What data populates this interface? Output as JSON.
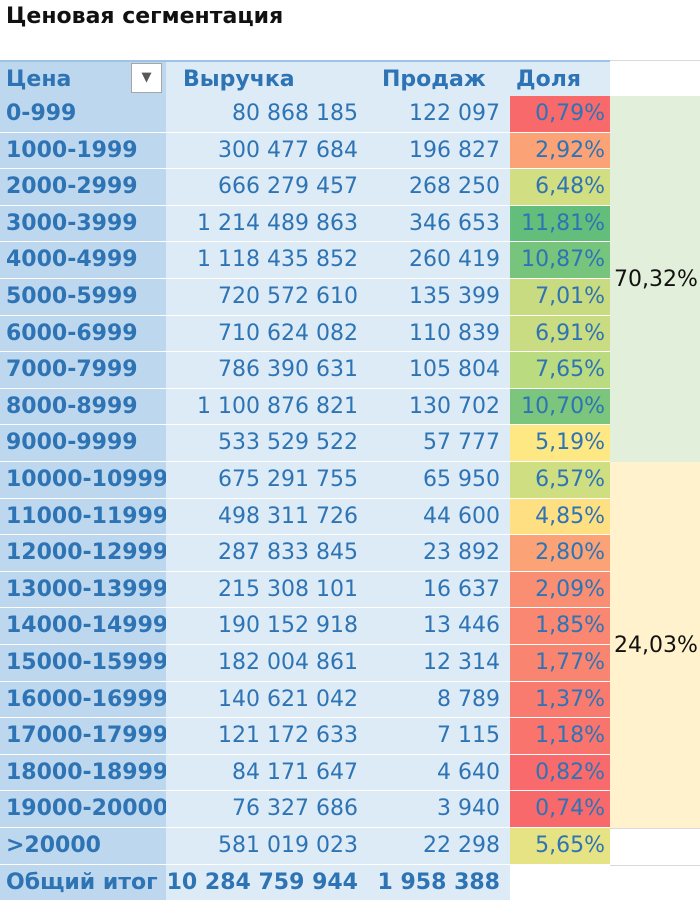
{
  "title": "Ценовая сегментация",
  "headers": {
    "price": "Цена",
    "revenue": "Выручка",
    "sales": "Продаж",
    "share": "Доля"
  },
  "filter_icon": "dropdown-arrow-icon",
  "filter_glyph": "▼",
  "rows": [
    {
      "price": "0-999",
      "revenue": "80 868 185",
      "sales": "122 097",
      "share": "0,79%",
      "color": "#f8696b"
    },
    {
      "price": "1000-1999",
      "revenue": "300 477 684",
      "sales": "196 827",
      "share": "2,92%",
      "color": "#fba276"
    },
    {
      "price": "2000-2999",
      "revenue": "666 279 457",
      "sales": "268 250",
      "share": "6,48%",
      "color": "#d2de82"
    },
    {
      "price": "3000-3999",
      "revenue": "1 214 489 863",
      "sales": "346 653",
      "share": "11,81%",
      "color": "#63be7b"
    },
    {
      "price": "4000-4999",
      "revenue": "1 118 435 852",
      "sales": "260 419",
      "share": "10,87%",
      "color": "#77c47d"
    },
    {
      "price": "5000-5999",
      "revenue": "720 572 610",
      "sales": "135 399",
      "share": "7,01%",
      "color": "#c8db81"
    },
    {
      "price": "6000-6999",
      "revenue": "710 624 082",
      "sales": "110 839",
      "share": "6,91%",
      "color": "#cadc81"
    },
    {
      "price": "7000-7999",
      "revenue": "786 390 631",
      "sales": "105 804",
      "share": "7,65%",
      "color": "#badb80"
    },
    {
      "price": "8000-8999",
      "revenue": "1 100 876 821",
      "sales": "130 702",
      "share": "10,70%",
      "color": "#7bc57d"
    },
    {
      "price": "9000-9999",
      "revenue": "533 529 522",
      "sales": "57 777",
      "share": "5,19%",
      "color": "#fde883"
    },
    {
      "price": "10000-10999",
      "revenue": "675 291 755",
      "sales": "65 950",
      "share": "6,57%",
      "color": "#d0de82"
    },
    {
      "price": "11000-11999",
      "revenue": "498 311 726",
      "sales": "44 600",
      "share": "4,85%",
      "color": "#fee082"
    },
    {
      "price": "12000-12999",
      "revenue": "287 833 845",
      "sales": "23 892",
      "share": "2,80%",
      "color": "#fba276"
    },
    {
      "price": "13000-13999",
      "revenue": "215 308 101",
      "sales": "16 637",
      "share": "2,09%",
      "color": "#fa8e73"
    },
    {
      "price": "14000-14999",
      "revenue": "190 152 918",
      "sales": "13 446",
      "share": "1,85%",
      "color": "#f98771"
    },
    {
      "price": "15000-15999",
      "revenue": "182 004 861",
      "sales": "12 314",
      "share": "1,77%",
      "color": "#f98571"
    },
    {
      "price": "16000-16999",
      "revenue": "140 621 042",
      "sales": "8 789",
      "share": "1,37%",
      "color": "#f97a6e"
    },
    {
      "price": "17000-17999",
      "revenue": "121 172 633",
      "sales": "7 115",
      "share": "1,18%",
      "color": "#f8746d"
    },
    {
      "price": "18000-18999",
      "revenue": "84 171 647",
      "sales": "4 640",
      "share": "0,82%",
      "color": "#f86a6b"
    },
    {
      "price": "19000-20000",
      "revenue": "76 327 686",
      "sales": "3 940",
      "share": "0,74%",
      "color": "#f8696b"
    },
    {
      "price": ">20000",
      "revenue": "581 019 023",
      "sales": "22 298",
      "share": "5,65%",
      "color": "#e5e383"
    }
  ],
  "total": {
    "label": "Общий итог",
    "revenue": "10 284 759 944",
    "sales": "1 958 388"
  },
  "segments": [
    {
      "label": "70,32%",
      "first_row": 0,
      "last_row": 9,
      "color": "#e2efda"
    },
    {
      "label": "24,03%",
      "first_row": 10,
      "last_row": 19,
      "color": "#fff2cc"
    }
  ]
}
